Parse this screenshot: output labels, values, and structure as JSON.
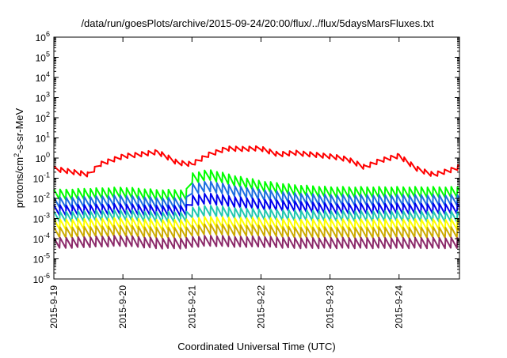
{
  "chart_data": {
    "type": "line",
    "title": "/data/run/goesPlots/archive/2015-09-24/20:00/flux/../flux/5daysMarsFluxes.txt",
    "xlabel": "Coordinated Universal Time (UTC)",
    "ylabel": "protons/cm²-s-sr-MeV",
    "ylabel_parts": {
      "base": "protons/cm",
      "sup": "2",
      "rest": "-s-sr-MeV"
    },
    "yscale": "log",
    "ylim": [
      1e-06,
      1000000.0
    ],
    "xlim": [
      "2015-9-19",
      "2015-9-24 21:00"
    ],
    "xticks": [
      "2015-9-19",
      "2015-9-20",
      "2015-9-21",
      "2015-9-22",
      "2015-9-23",
      "2015-9-24"
    ],
    "yticks": [
      {
        "base": "10",
        "exp": "-6"
      },
      {
        "base": "10",
        "exp": "-5"
      },
      {
        "base": "10",
        "exp": "-4"
      },
      {
        "base": "10",
        "exp": "-3"
      },
      {
        "base": "10",
        "exp": "-2"
      },
      {
        "base": "10",
        "exp": "-1"
      },
      {
        "base": "10",
        "exp": "0"
      },
      {
        "base": "10",
        "exp": "1"
      },
      {
        "base": "10",
        "exp": "2"
      },
      {
        "base": "10",
        "exp": "3"
      },
      {
        "base": "10",
        "exp": "4"
      },
      {
        "base": "10",
        "exp": "5"
      },
      {
        "base": "10",
        "exp": "6"
      }
    ],
    "grid": false,
    "legend": "none",
    "series": [
      {
        "color": "#ff0000",
        "x": [
          "2015-9-19",
          "2015-9-19 12:00",
          "2015-9-19 16:00",
          "2015-9-20",
          "2015-9-20 12:00",
          "2015-9-20 19:00",
          "2015-9-21",
          "2015-9-21 06:00",
          "2015-9-21 12:00",
          "2015-9-21 18:00",
          "2015-9-22",
          "2015-9-22 06:00",
          "2015-9-22 12:00",
          "2015-9-22 18:00",
          "2015-9-23",
          "2015-9-23 06:00",
          "2015-9-23 12:00",
          "2015-9-23 18:00",
          "2015-9-24",
          "2015-9-24 06:00",
          "2015-9-24 12:00",
          "2015-9-24 18:00",
          "2015-9-24 21:00"
        ],
        "values": [
          0.3,
          0.15,
          0.5,
          1.2,
          2.0,
          0.6,
          0.5,
          1.5,
          3.0,
          2.8,
          3.0,
          1.5,
          1.8,
          1.5,
          1.2,
          0.9,
          0.35,
          0.8,
          1.3,
          0.3,
          0.15,
          0.25,
          0.35
        ]
      },
      {
        "color": "#00ff00",
        "x": [
          "2015-9-19",
          "2015-9-20",
          "2015-9-20 12:00",
          "2015-9-20 22:00",
          "2015-9-21",
          "2015-9-21 06:00",
          "2015-9-21 18:00",
          "2015-9-22",
          "2015-9-22 12:00",
          "2015-9-23",
          "2015-9-23 12:00",
          "2015-9-24",
          "2015-9-24 21:00"
        ],
        "values": [
          0.015,
          0.02,
          0.015,
          0.015,
          0.1,
          0.15,
          0.06,
          0.04,
          0.025,
          0.02,
          0.02,
          0.02,
          0.02
        ]
      },
      {
        "color": "#1e6fe0",
        "x": [
          "2015-9-19",
          "2015-9-20",
          "2015-9-20 12:00",
          "2015-9-20 22:00",
          "2015-9-21",
          "2015-9-21 06:00",
          "2015-9-21 18:00",
          "2015-9-22",
          "2015-9-22 12:00",
          "2015-9-23",
          "2015-9-23 12:00",
          "2015-9-24",
          "2015-9-24 21:00"
        ],
        "values": [
          0.006,
          0.008,
          0.006,
          0.006,
          0.03,
          0.04,
          0.02,
          0.015,
          0.01,
          0.008,
          0.008,
          0.008,
          0.008
        ]
      },
      {
        "color": "#0000ee",
        "x": [
          "2015-9-19",
          "2015-9-20",
          "2015-9-20 12:00",
          "2015-9-20 22:00",
          "2015-9-21",
          "2015-9-21 06:00",
          "2015-9-21 18:00",
          "2015-9-22",
          "2015-9-22 12:00",
          "2015-9-23",
          "2015-9-23 12:00",
          "2015-9-24",
          "2015-9-24 21:00"
        ],
        "values": [
          0.0025,
          0.003,
          0.0025,
          0.0025,
          0.008,
          0.01,
          0.006,
          0.005,
          0.004,
          0.003,
          0.003,
          0.003,
          0.003
        ]
      },
      {
        "color": "#22c8b0",
        "x": [
          "2015-9-19",
          "2015-9-20",
          "2015-9-20 12:00",
          "2015-9-20 22:00",
          "2015-9-21",
          "2015-9-21 06:00",
          "2015-9-21 18:00",
          "2015-9-22",
          "2015-9-22 12:00",
          "2015-9-23",
          "2015-9-23 12:00",
          "2015-9-24",
          "2015-9-24 21:00"
        ],
        "values": [
          0.0012,
          0.0015,
          0.0012,
          0.0012,
          0.002,
          0.0025,
          0.0018,
          0.0016,
          0.0014,
          0.0013,
          0.0013,
          0.0013,
          0.0012
        ]
      },
      {
        "color": "#ffff00",
        "x": [
          "2015-9-19",
          "2015-9-20",
          "2015-9-20 12:00",
          "2015-9-20 22:00",
          "2015-9-21",
          "2015-9-21 06:00",
          "2015-9-21 18:00",
          "2015-9-22",
          "2015-9-22 12:00",
          "2015-9-23",
          "2015-9-23 12:00",
          "2015-9-24",
          "2015-9-24 21:00"
        ],
        "values": [
          0.0005,
          0.0006,
          0.0005,
          0.0005,
          0.0006,
          0.0007,
          0.0006,
          0.0006,
          0.0005,
          0.0005,
          0.0005,
          0.0005,
          0.0005
        ]
      },
      {
        "color": "#ccaa00",
        "x": [
          "2015-9-19",
          "2015-9-20",
          "2015-9-20 12:00",
          "2015-9-20 22:00",
          "2015-9-21",
          "2015-9-21 06:00",
          "2015-9-21 18:00",
          "2015-9-22",
          "2015-9-22 12:00",
          "2015-9-23",
          "2015-9-23 12:00",
          "2015-9-24",
          "2015-9-24 21:00"
        ],
        "values": [
          0.0002,
          0.00025,
          0.0002,
          0.0002,
          0.00025,
          0.0003,
          0.00025,
          0.00025,
          0.0002,
          0.0002,
          0.0002,
          0.0002,
          0.0002
        ]
      },
      {
        "color": "#8c2a6a",
        "x": [
          "2015-9-19",
          "2015-9-20",
          "2015-9-20 12:00",
          "2015-9-20 22:00",
          "2015-9-21",
          "2015-9-21 06:00",
          "2015-9-21 18:00",
          "2015-9-22",
          "2015-9-22 12:00",
          "2015-9-23",
          "2015-9-23 12:00",
          "2015-9-24",
          "2015-9-24 21:00"
        ],
        "values": [
          6e-05,
          8e-05,
          6e-05,
          6e-05,
          7e-05,
          8e-05,
          7e-05,
          7e-05,
          6e-05,
          6e-05,
          6e-05,
          6e-05,
          6e-05
        ]
      }
    ]
  }
}
